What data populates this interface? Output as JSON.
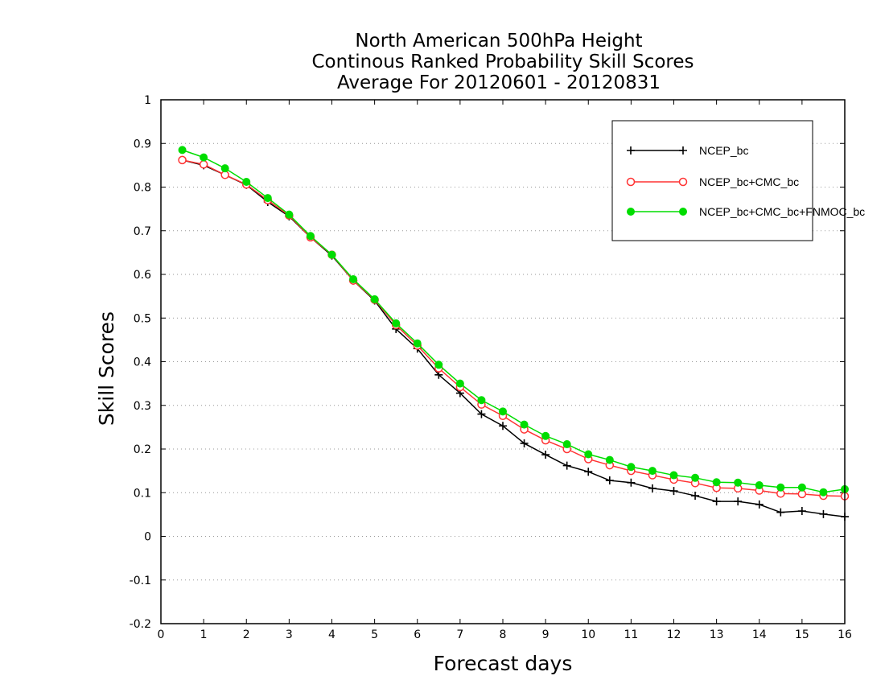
{
  "chart_data": {
    "type": "line",
    "title": [
      "North American 500hPa Height",
      "Continous Ranked Probability Skill Scores",
      "Average For 20120601 - 20120831"
    ],
    "xlabel": "Forecast days",
    "ylabel": "Skill Scores",
    "xlim": [
      0,
      16
    ],
    "ylim": [
      -0.2,
      1
    ],
    "x_ticks": [
      0,
      1,
      2,
      3,
      4,
      5,
      6,
      7,
      8,
      9,
      10,
      11,
      12,
      13,
      14,
      15,
      16
    ],
    "y_ticks": [
      -0.2,
      -0.1,
      0,
      0.1,
      0.2,
      0.3,
      0.4,
      0.5,
      0.6,
      0.7,
      0.8,
      0.9,
      1
    ],
    "y_tick_labels": [
      "-0.2",
      "-0.1",
      "0",
      "0.1",
      "0.2",
      "0.3",
      "0.4",
      "0.5",
      "0.6",
      "0.7",
      "0.8",
      "0.9",
      "1"
    ],
    "grid": "horizontal dotted",
    "legend_position": "top-right",
    "x": [
      0.5,
      1,
      1.5,
      2,
      2.5,
      3,
      3.5,
      4,
      4.5,
      5,
      5.5,
      6,
      6.5,
      7,
      7.5,
      8,
      8.5,
      9,
      9.5,
      10,
      10.5,
      11,
      11.5,
      12,
      12.5,
      13,
      13.5,
      14,
      14.5,
      15,
      15.5,
      16
    ],
    "series": [
      {
        "name": "NCEP_bc",
        "color": "#000000",
        "marker": "plus",
        "values": [
          0.862,
          0.85,
          0.828,
          0.805,
          0.766,
          0.733,
          0.685,
          0.643,
          0.586,
          0.54,
          0.475,
          0.43,
          0.37,
          0.328,
          0.28,
          0.253,
          0.213,
          0.187,
          0.162,
          0.148,
          0.128,
          0.123,
          0.11,
          0.104,
          0.093,
          0.08,
          0.08,
          0.073,
          0.055,
          0.058,
          0.051,
          0.045
        ]
      },
      {
        "name": "NCEP_bc+CMC_bc",
        "color": "#ff3333",
        "marker": "open-circle",
        "values": [
          0.862,
          0.852,
          0.828,
          0.806,
          0.77,
          0.735,
          0.685,
          0.645,
          0.586,
          0.542,
          0.484,
          0.437,
          0.385,
          0.342,
          0.302,
          0.276,
          0.245,
          0.22,
          0.2,
          0.177,
          0.163,
          0.15,
          0.14,
          0.13,
          0.122,
          0.111,
          0.11,
          0.105,
          0.098,
          0.097,
          0.093,
          0.092
        ]
      },
      {
        "name": "NCEP_bc+CMC_bc+FNMOC_bc",
        "color": "#00dd00",
        "marker": "filled-circle",
        "values": [
          0.885,
          0.868,
          0.843,
          0.812,
          0.775,
          0.737,
          0.688,
          0.645,
          0.589,
          0.543,
          0.488,
          0.442,
          0.393,
          0.35,
          0.312,
          0.286,
          0.256,
          0.23,
          0.211,
          0.188,
          0.175,
          0.159,
          0.15,
          0.14,
          0.134,
          0.124,
          0.123,
          0.117,
          0.112,
          0.112,
          0.101,
          0.108
        ]
      }
    ]
  }
}
